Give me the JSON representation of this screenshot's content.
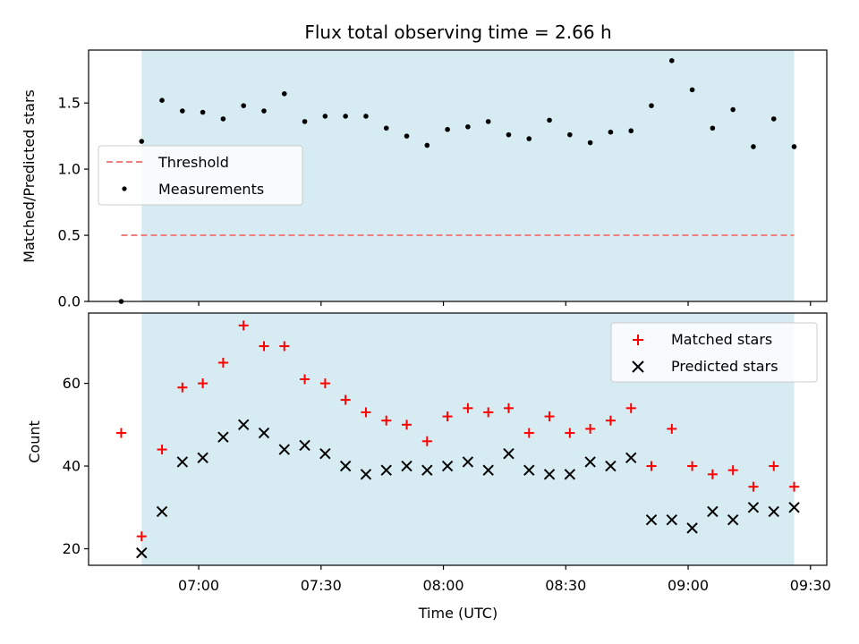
{
  "colors": {
    "span": "#add8e6",
    "threshold": "#f08080",
    "matched": "#ff0000",
    "predicted": "#000000",
    "measurement": "#000000"
  },
  "chart_data": [
    {
      "type": "scatter",
      "title": "Flux total observing time = 2.66 h",
      "xlabel": "",
      "ylabel": "Matched/Predicted stars",
      "xlim": [
        "06:33",
        "09:34"
      ],
      "ylim": [
        0,
        1.9
      ],
      "yticks": [
        0.0,
        0.5,
        1.0,
        1.5
      ],
      "ytick_labels": [
        "0.0",
        "0.5",
        "1.0",
        "1.5"
      ],
      "xticks": [
        "07:00",
        "07:30",
        "08:00",
        "08:30",
        "09:00",
        "09:30"
      ],
      "show_xtick_labels": false,
      "shaded_span": [
        "06:46",
        "09:26"
      ],
      "threshold": {
        "name": "Threshold",
        "y": 0.5,
        "x_range": [
          "06:41",
          "09:26"
        ],
        "style": "dashed"
      },
      "series": [
        {
          "name": "Measurements",
          "marker": "dot",
          "x": [
            "06:41",
            "06:46",
            "06:51",
            "06:56",
            "07:01",
            "07:06",
            "07:11",
            "07:16",
            "07:21",
            "07:26",
            "07:31",
            "07:36",
            "07:41",
            "07:46",
            "07:51",
            "07:56",
            "08:01",
            "08:06",
            "08:11",
            "08:16",
            "08:21",
            "08:26",
            "08:31",
            "08:36",
            "08:41",
            "08:46",
            "08:51",
            "08:56",
            "09:01",
            "09:06",
            "09:11",
            "09:16",
            "09:21",
            "09:26"
          ],
          "y": [
            0.0,
            1.21,
            1.52,
            1.44,
            1.43,
            1.38,
            1.48,
            1.44,
            1.57,
            1.36,
            1.4,
            1.4,
            1.4,
            1.31,
            1.25,
            1.18,
            1.3,
            1.32,
            1.36,
            1.26,
            1.23,
            1.37,
            1.26,
            1.2,
            1.28,
            1.29,
            1.48,
            1.82,
            1.6,
            1.31,
            1.45,
            1.17,
            1.38,
            1.17
          ]
        }
      ],
      "legend": {
        "placement": "center-left",
        "entries": [
          "Threshold",
          "Measurements"
        ]
      }
    },
    {
      "type": "scatter",
      "title": "",
      "xlabel": "Time (UTC)",
      "ylabel": "Count",
      "xlim": [
        "06:33",
        "09:34"
      ],
      "ylim": [
        16,
        77
      ],
      "yticks": [
        20,
        40,
        60
      ],
      "ytick_labels": [
        "20",
        "40",
        "60"
      ],
      "xticks": [
        "07:00",
        "07:30",
        "08:00",
        "08:30",
        "09:00",
        "09:30"
      ],
      "xtick_labels": [
        "07:00",
        "07:30",
        "08:00",
        "08:30",
        "09:00",
        "09:30"
      ],
      "shaded_span": [
        "06:46",
        "09:26"
      ],
      "series": [
        {
          "name": "Matched stars",
          "marker": "plus",
          "x": [
            "06:41",
            "06:46",
            "06:51",
            "06:56",
            "07:01",
            "07:06",
            "07:11",
            "07:16",
            "07:21",
            "07:26",
            "07:31",
            "07:36",
            "07:41",
            "07:46",
            "07:51",
            "07:56",
            "08:01",
            "08:06",
            "08:11",
            "08:16",
            "08:21",
            "08:26",
            "08:31",
            "08:36",
            "08:41",
            "08:46",
            "08:51",
            "08:56",
            "09:01",
            "09:06",
            "09:11",
            "09:16",
            "09:21",
            "09:26"
          ],
          "y": [
            48,
            23,
            44,
            59,
            60,
            65,
            74,
            69,
            69,
            61,
            60,
            56,
            53,
            51,
            50,
            46,
            52,
            54,
            53,
            54,
            48,
            52,
            48,
            49,
            51,
            54,
            40,
            49,
            40,
            38,
            39,
            35,
            40,
            35
          ]
        },
        {
          "name": "Predicted stars",
          "marker": "x",
          "x": [
            "06:46",
            "06:51",
            "06:56",
            "07:01",
            "07:06",
            "07:11",
            "07:16",
            "07:21",
            "07:26",
            "07:31",
            "07:36",
            "07:41",
            "07:46",
            "07:51",
            "07:56",
            "08:01",
            "08:06",
            "08:11",
            "08:16",
            "08:21",
            "08:26",
            "08:31",
            "08:36",
            "08:41",
            "08:46",
            "08:51",
            "08:56",
            "09:01",
            "09:06",
            "09:11",
            "09:16",
            "09:21",
            "09:26"
          ],
          "y": [
            19,
            29,
            41,
            42,
            47,
            50,
            48,
            44,
            45,
            43,
            40,
            38,
            39,
            40,
            39,
            40,
            41,
            39,
            43,
            39,
            38,
            38,
            41,
            40,
            42,
            27,
            27,
            25,
            29,
            27,
            30,
            29,
            30
          ]
        }
      ],
      "legend": {
        "placement": "top-right",
        "entries": [
          "Matched stars",
          "Predicted stars"
        ]
      }
    }
  ]
}
